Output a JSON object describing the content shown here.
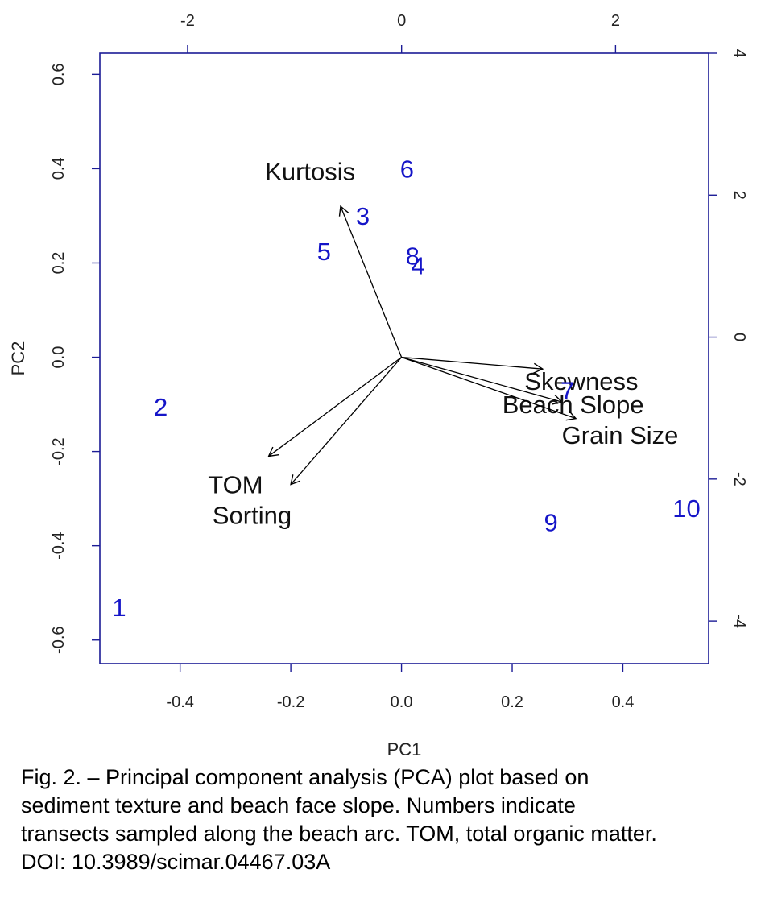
{
  "chart_data": {
    "type": "scatter",
    "subtype": "biplot",
    "xlabel": "PC1",
    "ylabel": "PC2",
    "xlim": [
      -0.545,
      0.555
    ],
    "ylim": [
      -0.65,
      0.645
    ],
    "x_ticks": [
      -0.4,
      -0.2,
      0.0,
      0.2,
      0.4
    ],
    "x_tick_labels": [
      "-0.4",
      "-0.2",
      "0.0",
      "0.2",
      "0.4"
    ],
    "y_ticks": [
      -0.6,
      -0.4,
      -0.2,
      0.0,
      0.2,
      0.4,
      0.6
    ],
    "y_tick_labels": [
      "-0.6",
      "-0.4",
      "-0.2",
      "0.0",
      "0.2",
      "0.4",
      "0.6"
    ],
    "top_axis": {
      "lim": [
        -2.82,
        2.87
      ],
      "ticks": [
        -2,
        0,
        2
      ],
      "tick_labels": [
        "-2",
        "0",
        "2"
      ]
    },
    "right_axis": {
      "lim": [
        -4.6,
        4.0
      ],
      "ticks": [
        -4,
        -2,
        0,
        2,
        4
      ],
      "tick_labels": [
        "-4",
        "-2",
        "0",
        "2",
        "4"
      ]
    },
    "point_color": "#1515c8",
    "arrow_color": "#000000",
    "frame_color": "#1c1c96",
    "grid": false,
    "points": [
      {
        "label": "1",
        "x": -0.51,
        "y": -0.53
      },
      {
        "label": "2",
        "x": -0.435,
        "y": -0.105
      },
      {
        "label": "3",
        "x": -0.07,
        "y": 0.3
      },
      {
        "label": "4",
        "x": 0.03,
        "y": 0.195
      },
      {
        "label": "5",
        "x": -0.14,
        "y": 0.225
      },
      {
        "label": "6",
        "x": 0.01,
        "y": 0.4
      },
      {
        "label": "7",
        "x": 0.3,
        "y": -0.07
      },
      {
        "label": "8",
        "x": 0.02,
        "y": 0.215
      },
      {
        "label": "9",
        "x": 0.27,
        "y": -0.35
      },
      {
        "label": "10",
        "x": 0.515,
        "y": -0.32
      }
    ],
    "loadings": [
      {
        "name": "Kurtosis",
        "x": -0.11,
        "y": 0.32,
        "label_x": -0.165,
        "label_y": 0.395
      },
      {
        "name": "Skewness",
        "x": 0.255,
        "y": -0.025,
        "label_x": 0.325,
        "label_y": -0.05
      },
      {
        "name": "Beach Slope",
        "x": 0.29,
        "y": -0.095,
        "label_x": 0.31,
        "label_y": -0.1
      },
      {
        "name": "Grain Size",
        "x": 0.315,
        "y": -0.13,
        "label_x": 0.395,
        "label_y": -0.165
      },
      {
        "name": "TOM",
        "x": -0.24,
        "y": -0.21,
        "label_x": -0.3,
        "label_y": -0.27
      },
      {
        "name": "Sorting",
        "x": -0.2,
        "y": -0.27,
        "label_x": -0.27,
        "label_y": -0.335
      }
    ]
  },
  "caption": {
    "line1": "Fig. 2. – Principal component analysis (PCA) plot based on",
    "line2": "sediment texture and beach face slope. Numbers indicate",
    "line3": "transects sampled along the beach arc. TOM, total organic matter.",
    "line4": "DOI: 10.3989/scimar.04467.03A"
  }
}
